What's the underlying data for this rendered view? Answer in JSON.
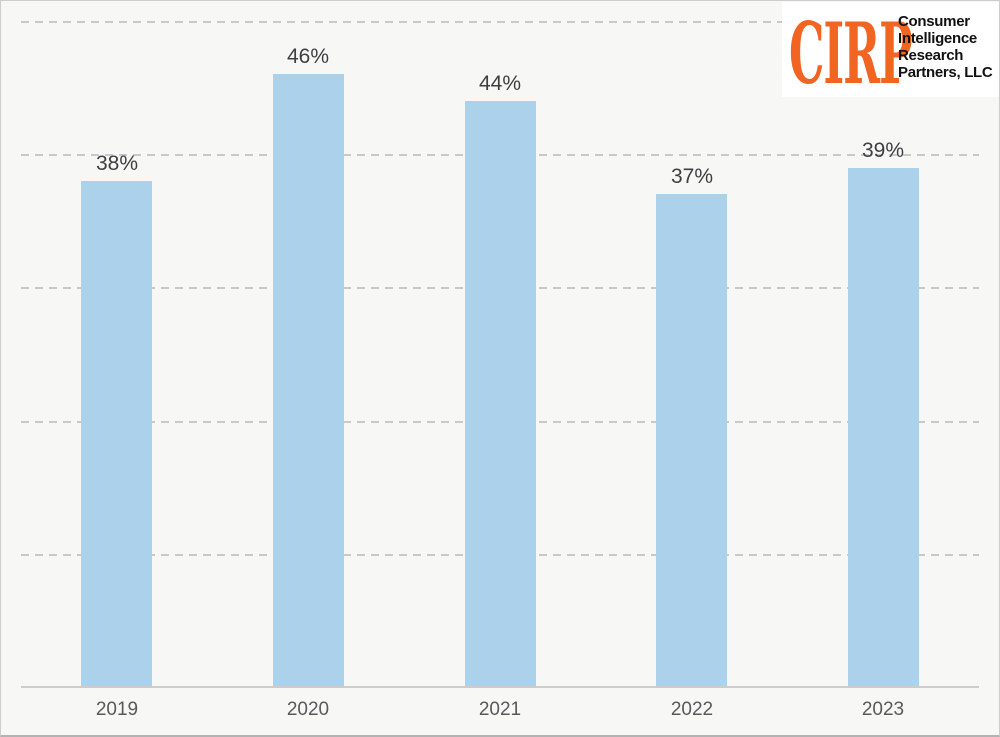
{
  "page": {
    "background": "#f7f7f6",
    "border_color": "#cdcdcd"
  },
  "logo": {
    "acronym": "CIRP",
    "acronym_color": "#f26422",
    "lines": [
      "Consumer",
      "Intelligence",
      "Research",
      "Partners, LLC"
    ],
    "text_color": "#121212",
    "background": "#ffffff"
  },
  "chart_data": {
    "type": "bar",
    "title": "",
    "xlabel": "",
    "ylabel": "",
    "categories": [
      "2019",
      "2020",
      "2021",
      "2022",
      "2023"
    ],
    "values": [
      38,
      46,
      44,
      37,
      39
    ],
    "labels": [
      "38%",
      "46%",
      "44%",
      "37%",
      "39%"
    ],
    "ylim": [
      0,
      51.5
    ],
    "gridline_percents": [
      10,
      20,
      30,
      40,
      50
    ],
    "grid": "horizontal-dashed",
    "legend": "none",
    "bar_color": "#acd1ea",
    "gridline_color": "#c9c9c9",
    "axis_color": "#cdcdcd",
    "value_label_color": "#3f3f3f",
    "tick_label_color": "#595959"
  }
}
